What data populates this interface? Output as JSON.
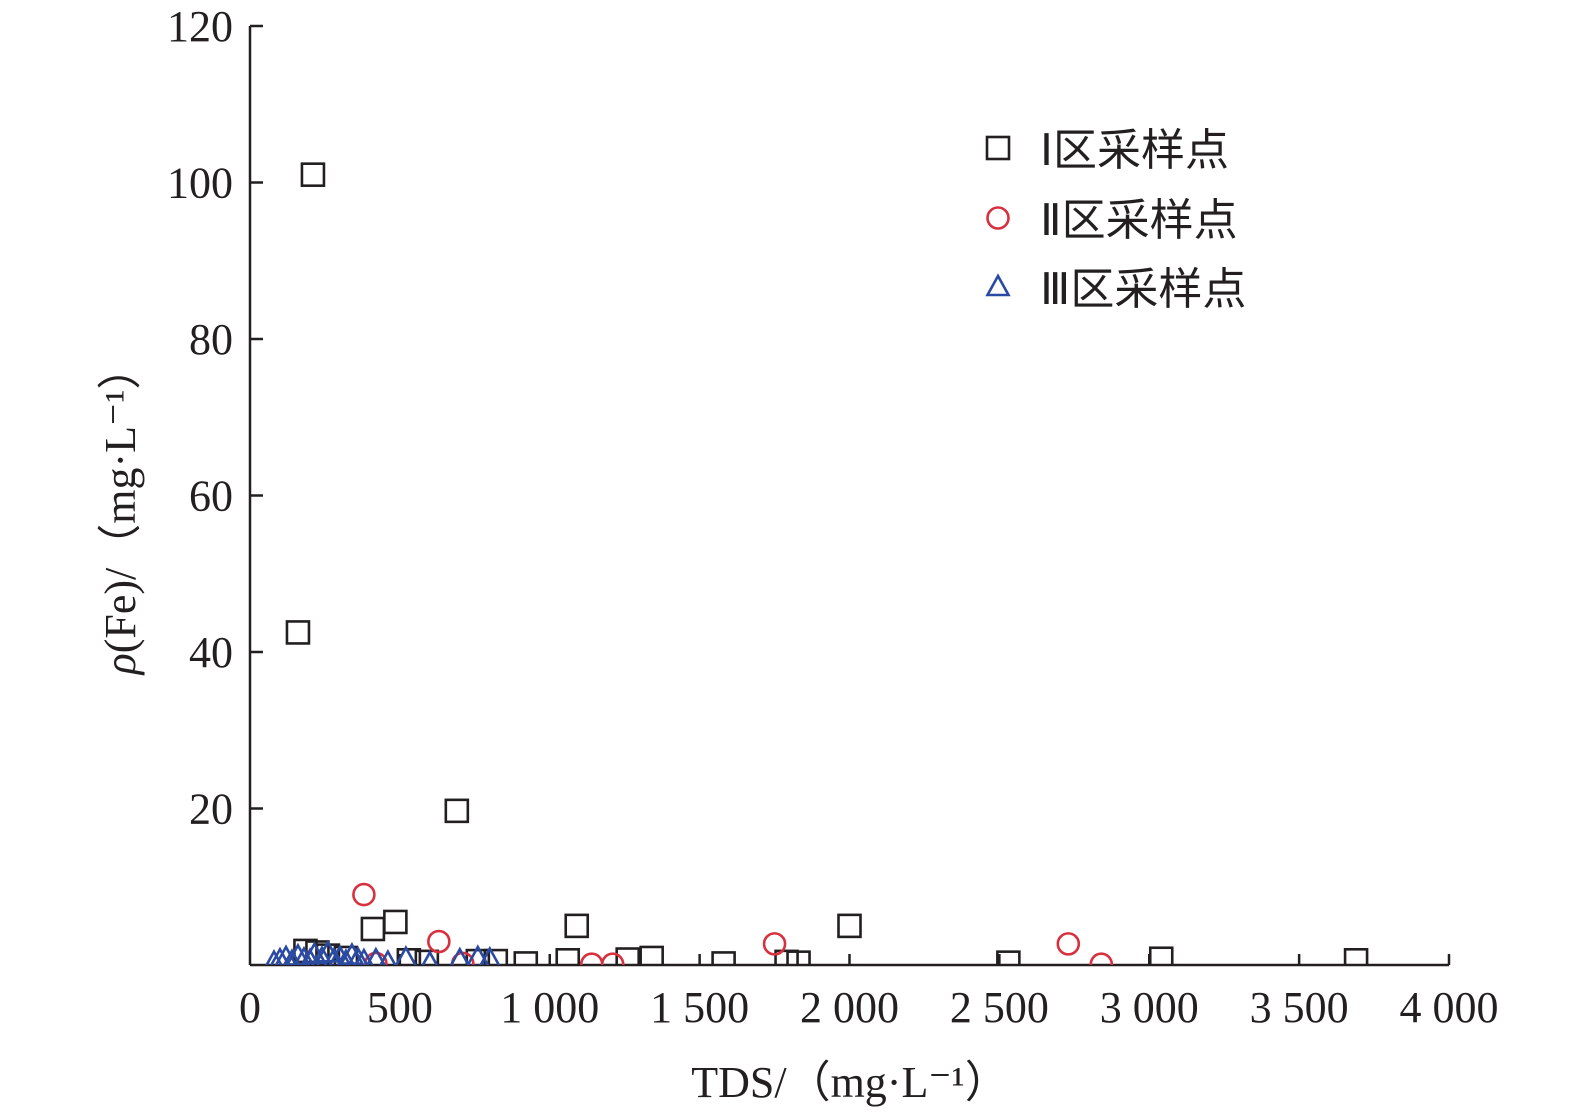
{
  "chart_data": {
    "type": "scatter",
    "title": "",
    "xlabel": "TDS/（mg·L⁻¹）",
    "ylabel_parts": {
      "italic": "ρ",
      "rest": "(Fe)/（mg·L⁻¹）"
    },
    "xlim": [
      0,
      4000
    ],
    "ylim": [
      0,
      120
    ],
    "xticks": [
      {
        "v": 0,
        "label": "0"
      },
      {
        "v": 500,
        "label": "500"
      },
      {
        "v": 1000,
        "label": "1 000"
      },
      {
        "v": 1500,
        "label": "1 500"
      },
      {
        "v": 2000,
        "label": "2 000"
      },
      {
        "v": 2500,
        "label": "2 500"
      },
      {
        "v": 3000,
        "label": "3 000"
      },
      {
        "v": 3500,
        "label": "3 500"
      },
      {
        "v": 4000,
        "label": "4 000"
      }
    ],
    "yticks": [
      {
        "v": 20,
        "label": "20"
      },
      {
        "v": 40,
        "label": "40"
      },
      {
        "v": 60,
        "label": "60"
      },
      {
        "v": 80,
        "label": "80"
      },
      {
        "v": 100,
        "label": "100"
      },
      {
        "v": 120,
        "label": "120"
      }
    ],
    "grid": false,
    "legend_position": "top-right",
    "series": [
      {
        "name": "Ⅰ区采样点",
        "marker": "square",
        "color": "#231f20",
        "points": [
          [
            160,
            42.5
          ],
          [
            210,
            101
          ],
          [
            185,
            1.8
          ],
          [
            225,
            1.6
          ],
          [
            260,
            1.2
          ],
          [
            320,
            0.9
          ],
          [
            410,
            4.6
          ],
          [
            485,
            5.5
          ],
          [
            530,
            0.6
          ],
          [
            590,
            0.4
          ],
          [
            690,
            19.7
          ],
          [
            760,
            0.5
          ],
          [
            820,
            0.5
          ],
          [
            920,
            0.2
          ],
          [
            1060,
            0.6
          ],
          [
            1090,
            5.0
          ],
          [
            1260,
            0.7
          ],
          [
            1340,
            0.9
          ],
          [
            1580,
            0.2
          ],
          [
            1790,
            0.4
          ],
          [
            1830,
            0.3
          ],
          [
            2000,
            5.0
          ],
          [
            2530,
            0.3
          ],
          [
            3040,
            0.8
          ],
          [
            3690,
            0.6
          ]
        ]
      },
      {
        "name": "Ⅱ区采样点",
        "marker": "circle",
        "color": "#d8303f",
        "points": [
          [
            380,
            9.0
          ],
          [
            420,
            0.2
          ],
          [
            630,
            3.0
          ],
          [
            710,
            0.2
          ],
          [
            1140,
            0.1
          ],
          [
            1210,
            0.1
          ],
          [
            1750,
            2.7
          ],
          [
            2730,
            2.7
          ],
          [
            2840,
            0.1
          ]
        ]
      },
      {
        "name": "Ⅲ区采样点",
        "marker": "triangle",
        "color": "#2b4aa1",
        "points": [
          [
            80,
            0.3
          ],
          [
            100,
            0.6
          ],
          [
            120,
            0.9
          ],
          [
            140,
            0.4
          ],
          [
            160,
            1.1
          ],
          [
            180,
            0.7
          ],
          [
            200,
            0.5
          ],
          [
            215,
            1.3
          ],
          [
            240,
            0.8
          ],
          [
            260,
            1.5
          ],
          [
            280,
            0.6
          ],
          [
            300,
            0.9
          ],
          [
            320,
            0.4
          ],
          [
            340,
            1.2
          ],
          [
            360,
            0.7
          ],
          [
            380,
            0.5
          ],
          [
            420,
            0.6
          ],
          [
            460,
            0.3
          ],
          [
            520,
            0.8
          ],
          [
            600,
            0.2
          ],
          [
            700,
            0.6
          ],
          [
            760,
            0.9
          ],
          [
            800,
            0.7
          ]
        ]
      }
    ]
  }
}
